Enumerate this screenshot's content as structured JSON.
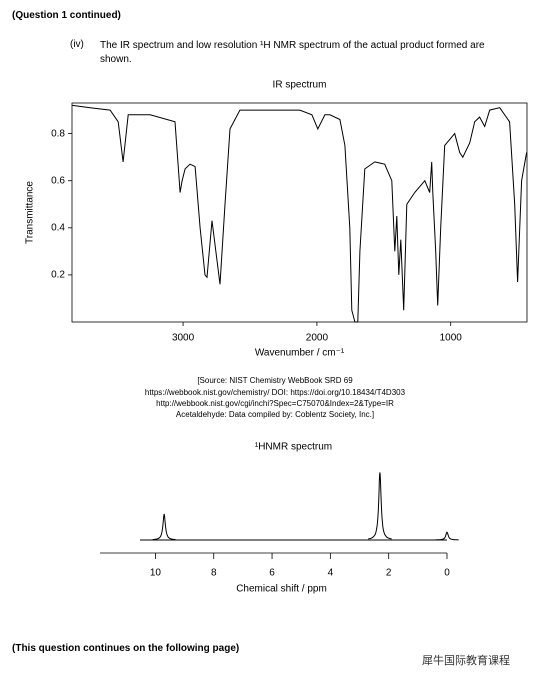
{
  "header": "(Question 1 continued)",
  "part": {
    "label": "(iv)",
    "text": "The IR spectrum and low resolution ¹H NMR spectrum of the actual product formed are shown."
  },
  "chart_data": [
    {
      "type": "line",
      "title": "IR spectrum",
      "x_label": "Wavenumber / cm⁻¹",
      "y_label": "Transmittance",
      "color": "#000000",
      "frame": true,
      "x": [
        3828,
        3694,
        3545,
        3485,
        3448,
        3410,
        3246,
        3060,
        3022,
        3007,
        2985,
        2948,
        2910,
        2873,
        2836,
        2821,
        2784,
        2724,
        2687,
        2649,
        2575,
        2351,
        2127,
        2037,
        1993,
        1940,
        1903,
        1828,
        1791,
        1754,
        1739,
        1716,
        1694,
        1679,
        1642,
        1567,
        1493,
        1440,
        1418,
        1403,
        1388,
        1373,
        1351,
        1328,
        1269,
        1194,
        1157,
        1142,
        1134,
        1112,
        1097,
        1075,
        1045,
        970,
        933,
        910,
        858,
        821,
        784,
        746,
        709,
        634,
        560,
        522,
        500,
        470,
        433
      ],
      "values": [
        0.92,
        0.91,
        0.9,
        0.85,
        0.68,
        0.88,
        0.88,
        0.85,
        0.55,
        0.6,
        0.65,
        0.67,
        0.66,
        0.4,
        0.2,
        0.19,
        0.43,
        0.16,
        0.5,
        0.82,
        0.9,
        0.9,
        0.9,
        0.88,
        0.82,
        0.88,
        0.88,
        0.86,
        0.75,
        0.4,
        0.05,
        0.0,
        0.0,
        0.3,
        0.65,
        0.68,
        0.67,
        0.6,
        0.3,
        0.45,
        0.2,
        0.35,
        0.05,
        0.5,
        0.55,
        0.6,
        0.55,
        0.68,
        0.55,
        0.3,
        0.07,
        0.4,
        0.75,
        0.8,
        0.72,
        0.7,
        0.76,
        0.85,
        0.87,
        0.83,
        0.9,
        0.91,
        0.85,
        0.5,
        0.17,
        0.6,
        0.72
      ],
      "xlim": [
        3830,
        430
      ],
      "ylim": [
        0,
        0.93
      ],
      "xticks": [
        3000,
        2000,
        1000
      ],
      "yticks": [
        0.2,
        0.4,
        0.6,
        0.8
      ]
    },
    {
      "type": "peaks",
      "title": "¹HNMR spectrum",
      "x_label": "Chemical shift / ppm",
      "color": "#000000",
      "frame": false,
      "x": [
        9.7,
        2.3,
        0
      ],
      "values": [
        1,
        2.6,
        0.3
      ],
      "xlim": [
        11.9,
        0
      ],
      "xticks": [
        10,
        8,
        6,
        4,
        2,
        0
      ]
    }
  ],
  "source": [
    "[Source: NIST Chemistry WebBook SRD 69",
    "https://webbook.nist.gov/chemistry/ DOI: https://doi.org/10.18434/T4D303",
    "http://webbook.nist.gov/cgi/inchi?Spec=C75070&Index=2&Type=IR",
    "Acetaldehyde: Data compiled by: Coblentz Society, Inc.]"
  ],
  "footer": "(This question continues on the following page)",
  "logo": "犀牛国际教育课程"
}
